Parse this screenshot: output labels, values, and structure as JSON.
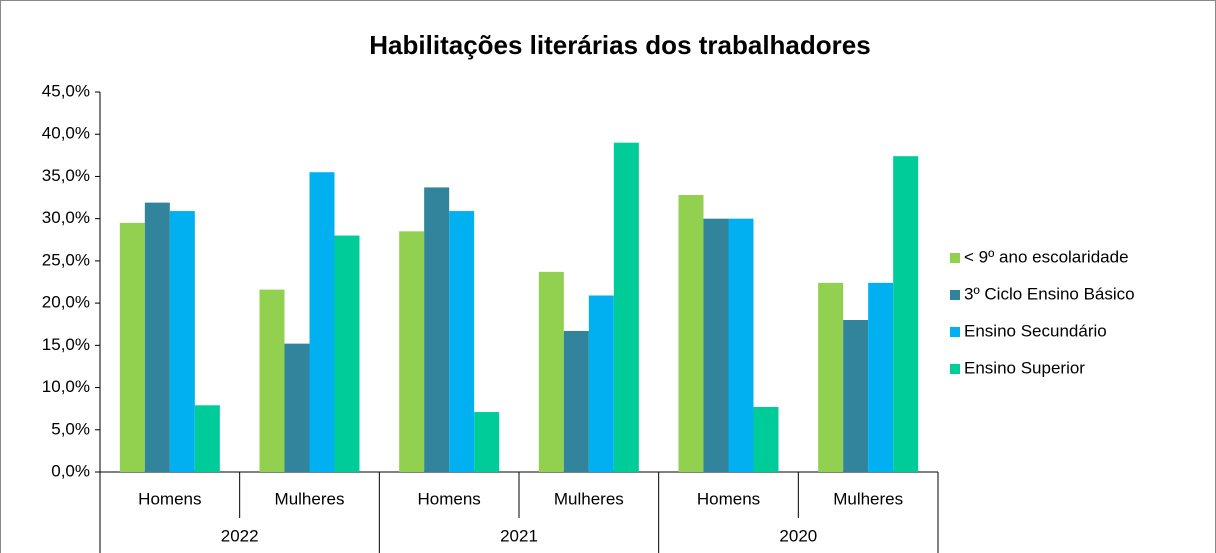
{
  "chart_data": {
    "type": "bar",
    "title": "Habilitações literárias dos trabalhadores",
    "groups": [
      "2022",
      "2021",
      "2020"
    ],
    "categories": [
      "Homens",
      "Mulheres",
      "Homens",
      "Mulheres",
      "Homens",
      "Mulheres"
    ],
    "series": [
      {
        "name": "< 9º ano escolaridade",
        "color": "#92d050",
        "values": [
          29.5,
          21.6,
          28.5,
          23.7,
          32.8,
          22.4
        ]
      },
      {
        "name": "3º Ciclo Ensino Básico",
        "color": "#31849b",
        "values": [
          31.9,
          15.2,
          33.7,
          16.7,
          30.0,
          18.0
        ]
      },
      {
        "name": "Ensino Secundário",
        "color": "#00b0f0",
        "values": [
          30.9,
          35.5,
          30.9,
          20.9,
          30.0,
          22.4
        ]
      },
      {
        "name": "Ensino Superior",
        "color": "#00cc99",
        "values": [
          7.9,
          28.0,
          7.1,
          39.0,
          7.7,
          37.4
        ]
      }
    ],
    "ylim": [
      0,
      45
    ],
    "yticks": [
      {
        "value": 0,
        "label": "0,0%"
      },
      {
        "value": 5,
        "label": "5,0%"
      },
      {
        "value": 10,
        "label": "10,0%"
      },
      {
        "value": 15,
        "label": "15,0%"
      },
      {
        "value": 20,
        "label": "20,0%"
      },
      {
        "value": 25,
        "label": "25,0%"
      },
      {
        "value": 30,
        "label": "30,0%"
      },
      {
        "value": 35,
        "label": "35,0%"
      },
      {
        "value": 40,
        "label": "40,0%"
      },
      {
        "value": 45,
        "label": "45,0%"
      }
    ],
    "legend": "right"
  }
}
